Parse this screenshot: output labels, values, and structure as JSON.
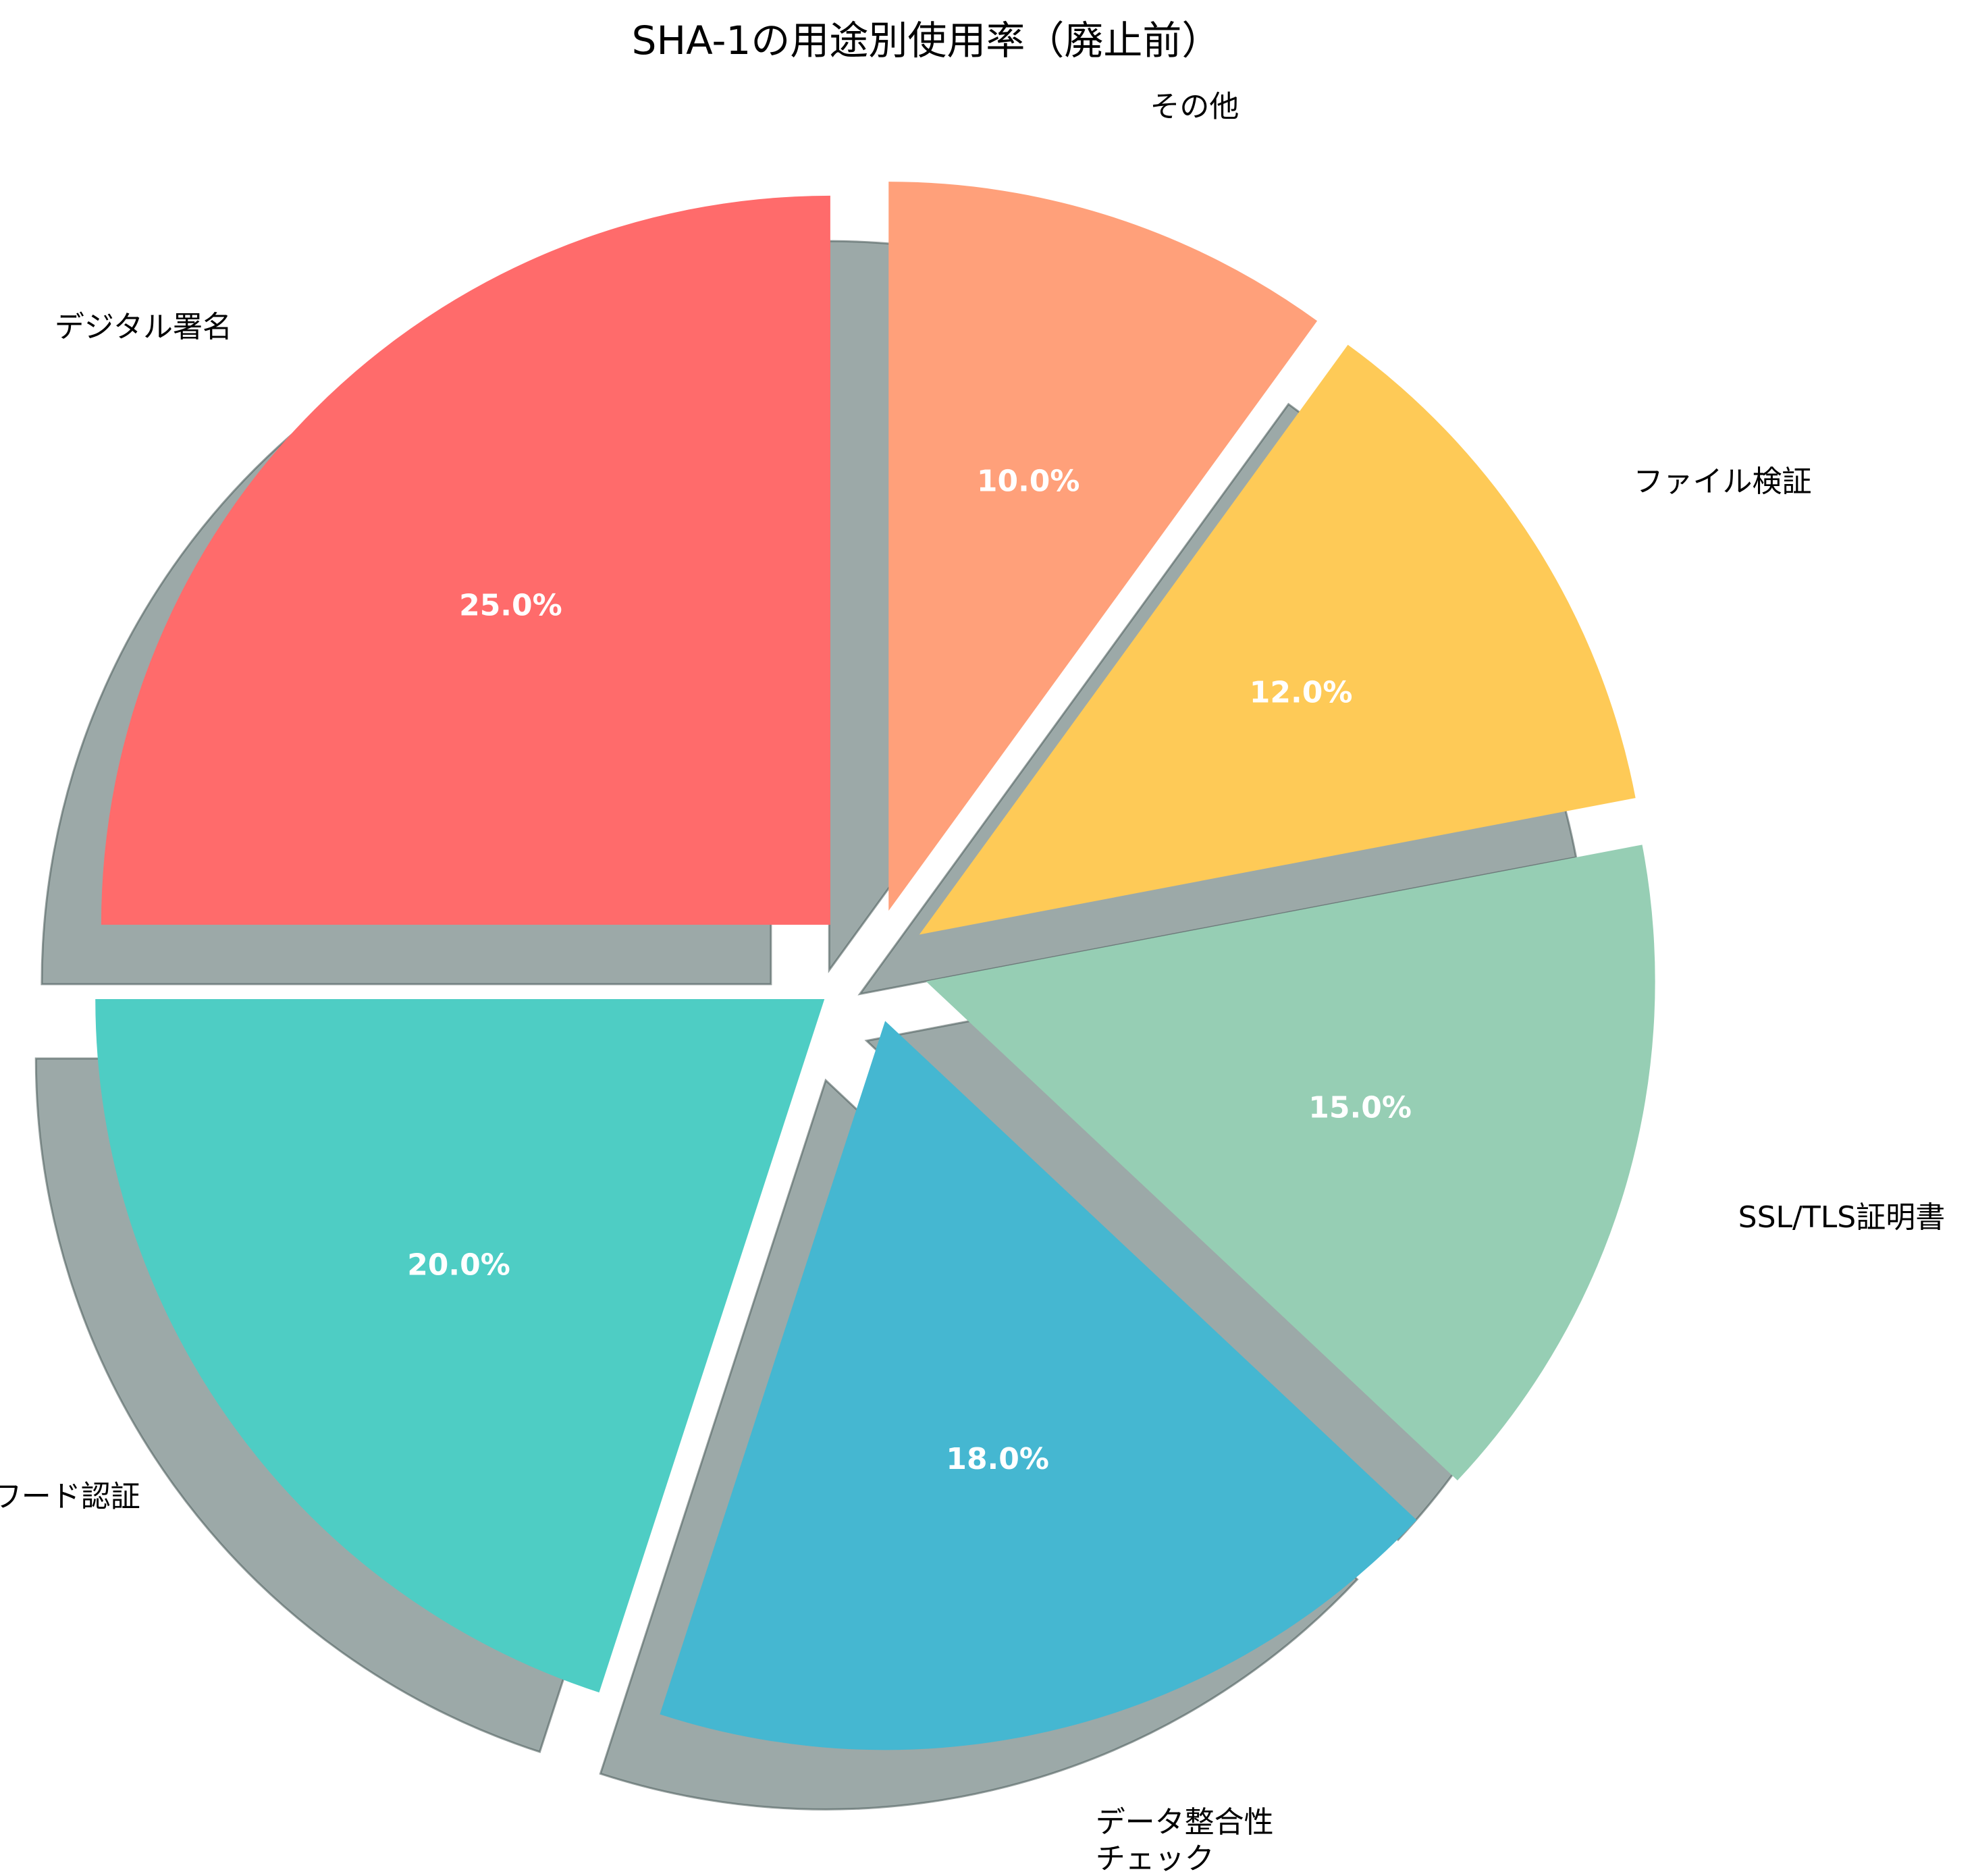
{
  "chart_data": {
    "type": "pie",
    "title": "SHA-1の用途別使用率（廃止前）",
    "slices": [
      {
        "label": "デジタル署名",
        "value": 25.0,
        "pct_text": "25.0%",
        "color": "#FF6B6B"
      },
      {
        "label": "パスワード認証",
        "value": 20.0,
        "pct_text": "20.0%",
        "color": "#4ECDC4"
      },
      {
        "label": "データ整合性\nチェック",
        "value": 18.0,
        "pct_text": "18.0%",
        "color": "#45B7D1"
      },
      {
        "label": "SSL/TLS証明書",
        "value": 15.0,
        "pct_text": "15.0%",
        "color": "#96CEB4"
      },
      {
        "label": "ファイル検証",
        "value": 12.0,
        "pct_text": "12.0%",
        "color": "#FECA57"
      },
      {
        "label": "その他",
        "value": 10.0,
        "pct_text": "10.0%",
        "color": "#FFA07A"
      }
    ],
    "start_angle_deg": 90,
    "direction": "counterclockwise",
    "exploded": true,
    "shadow": true,
    "shadow_color": "#8B9A99"
  }
}
